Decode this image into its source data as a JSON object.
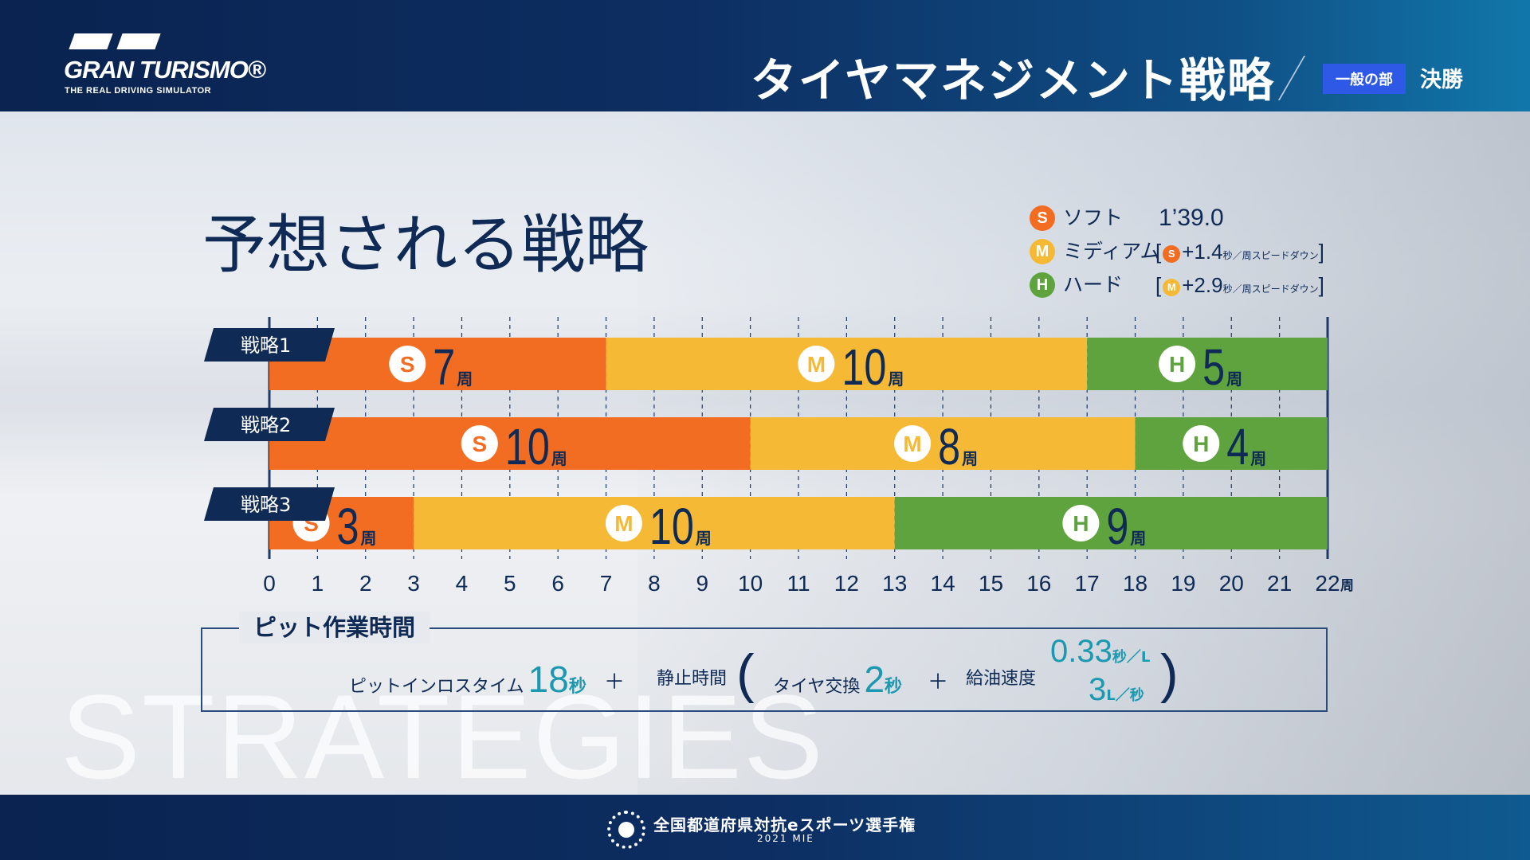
{
  "header": {
    "logo_main": "GRAN TURISMO®",
    "logo_sub": "THE REAL DRIVING SIMULATOR",
    "title": "タイヤマネジメント戦略",
    "badge": "一般の部",
    "round": "決勝"
  },
  "legend": [
    {
      "letter": "S",
      "name": "ソフト",
      "color": "#f26d22",
      "lap_time": "1’39.0"
    },
    {
      "letter": "M",
      "name": "ミディアム",
      "color": "#f6b935",
      "ref_letter": "S",
      "ref_color": "#f26d22",
      "delta": "+1.4",
      "unit": "秒／周スピードダウン"
    },
    {
      "letter": "H",
      "name": "ハード",
      "color": "#5ea33e",
      "ref_letter": "M",
      "ref_color": "#f6b935",
      "delta": "+2.9",
      "unit": "秒／周スピードダウン"
    }
  ],
  "chart_data": {
    "type": "bar",
    "orientation": "horizontal-stacked",
    "title": "予想される戦略",
    "watermark": "STRATEGIES",
    "x_ticks": [
      0,
      1,
      2,
      3,
      4,
      5,
      6,
      7,
      8,
      9,
      10,
      11,
      12,
      13,
      14,
      15,
      16,
      17,
      18,
      19,
      20,
      21,
      22
    ],
    "x_unit": "周",
    "xlim": [
      0,
      22
    ],
    "lap_unit": "周",
    "categories": [
      "戦略1",
      "戦略2",
      "戦略3"
    ],
    "strategies": [
      {
        "name": "戦略1",
        "stints": [
          {
            "tire": "S",
            "laps": 7
          },
          {
            "tire": "M",
            "laps": 10
          },
          {
            "tire": "H",
            "laps": 5
          }
        ]
      },
      {
        "name": "戦略2",
        "stints": [
          {
            "tire": "S",
            "laps": 10
          },
          {
            "tire": "M",
            "laps": 8
          },
          {
            "tire": "H",
            "laps": 4
          }
        ]
      },
      {
        "name": "戦略3",
        "stints": [
          {
            "tire": "S",
            "laps": 3
          },
          {
            "tire": "M",
            "laps": 10
          },
          {
            "tire": "H",
            "laps": 9
          }
        ]
      }
    ],
    "colors": {
      "S": "#f26d22",
      "M": "#f6b935",
      "H": "#5ea33e"
    }
  },
  "pit": {
    "title": "ピット作業時間",
    "loss_label": "ピットインロスタイム",
    "loss_value": "18",
    "loss_unit": "秒",
    "plus": "＋",
    "stop_label": "静止時間",
    "open_paren": "(",
    "tire_label": "タイヤ交換",
    "tire_value": "2",
    "tire_unit": "秒",
    "fuel_label": "給油速度",
    "fuel_value1": "0.33",
    "fuel_unit1": "秒／L",
    "fuel_value2": "3",
    "fuel_unit2": "L／秒",
    "close_paren": ")"
  },
  "footer": {
    "title": "全国都道府県対抗eスポーツ選手権",
    "sub": "2021 MIE"
  }
}
